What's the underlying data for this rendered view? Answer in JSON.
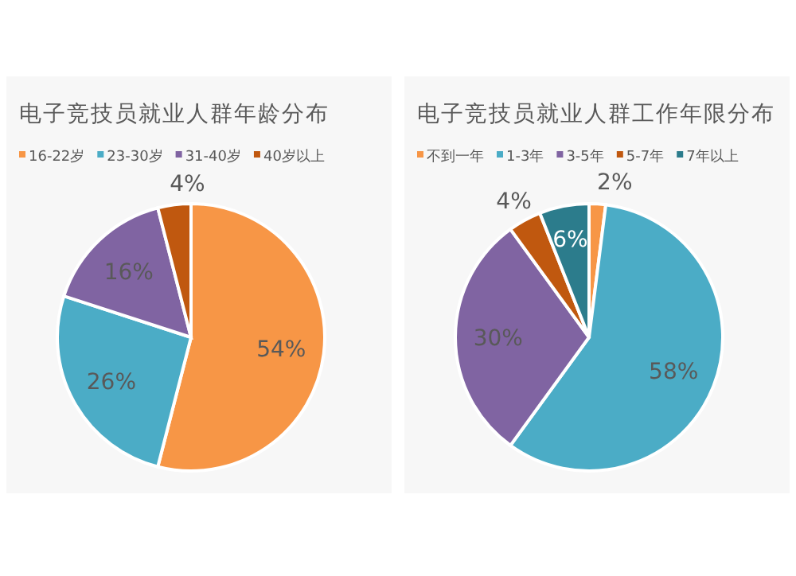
{
  "chart_data": [
    {
      "type": "pie",
      "title": "电子竞技员就业人群年龄分布",
      "categories": [
        "16-22岁",
        "23-30岁",
        "31-40岁",
        "40岁以上"
      ],
      "values": [
        54,
        26,
        16,
        4
      ],
      "colors": [
        "#f79646",
        "#4bacc6",
        "#8064a2",
        "#c0580f"
      ],
      "value_labels": [
        "54%",
        "26%",
        "16%",
        "4%"
      ],
      "legend": "top"
    },
    {
      "type": "pie",
      "title": "电子竞技员就业人群工作年限分布",
      "categories": [
        "不到一年",
        "1-3年",
        "3-5年",
        "5-7年",
        "7年以上"
      ],
      "values": [
        2,
        58,
        30,
        4,
        6
      ],
      "colors": [
        "#f79646",
        "#4bacc6",
        "#8064a2",
        "#c0580f",
        "#2c7c8c"
      ],
      "value_labels": [
        "2%",
        "58%",
        "30%",
        "4%",
        "6%"
      ],
      "legend": "top"
    }
  ]
}
